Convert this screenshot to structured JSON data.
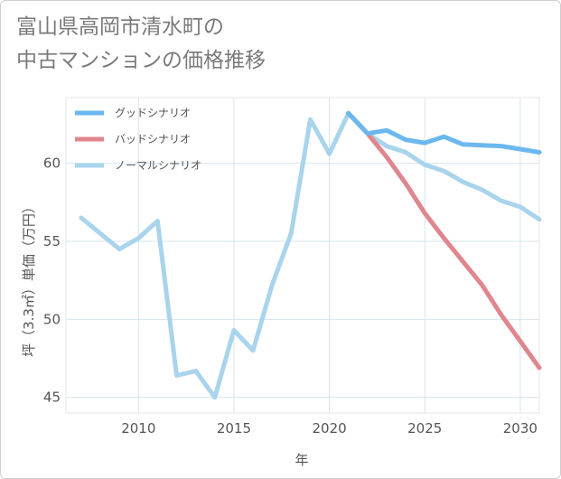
{
  "title": {
    "line1": "富山県高岡市清水町の",
    "line2": "中古マンションの価格推移"
  },
  "chart_data": {
    "type": "line",
    "title": "富山県高岡市清水町の中古マンションの価格推移",
    "xlabel": "年",
    "ylabel": "坪（3.3㎡）単価（万円）",
    "xlim": [
      2006.2,
      2031
    ],
    "ylim": [
      44,
      64.2
    ],
    "xticks": [
      2010,
      2015,
      2020,
      2025,
      2030
    ],
    "yticks": [
      45,
      50,
      55,
      60
    ],
    "grid": true,
    "legend_position": "top-left",
    "series": [
      {
        "name": "グッドシナリオ",
        "color": "#6bb8ee",
        "x": [
          2021,
          2022,
          2023,
          2024,
          2025,
          2026,
          2027,
          2028,
          2029,
          2030,
          2031
        ],
        "y": [
          63.2,
          61.9,
          62.1,
          61.5,
          61.3,
          61.7,
          61.2,
          61.15,
          61.1,
          60.9,
          60.7
        ]
      },
      {
        "name": "バッドシナリオ",
        "color": "#e0868e",
        "x": [
          2021,
          2022,
          2023,
          2024,
          2025,
          2026,
          2027,
          2028,
          2029,
          2030,
          2031
        ],
        "y": [
          63.2,
          61.9,
          60.4,
          58.7,
          56.8,
          55.2,
          53.7,
          52.2,
          50.3,
          48.6,
          46.9
        ]
      },
      {
        "name": "ノーマルシナリオ",
        "color": "#a9d4ec",
        "x": [
          2007,
          2008,
          2009,
          2010,
          2011,
          2012,
          2013,
          2014,
          2015,
          2016,
          2017,
          2018,
          2019,
          2020,
          2021,
          2022,
          2023,
          2024,
          2025,
          2026,
          2027,
          2028,
          2029,
          2030,
          2031
        ],
        "y": [
          56.5,
          55.5,
          54.5,
          55.2,
          56.3,
          46.4,
          46.7,
          45.0,
          49.3,
          48.0,
          52.2,
          55.5,
          62.8,
          60.6,
          63.2,
          61.9,
          61.1,
          60.7,
          59.9,
          59.5,
          58.8,
          58.3,
          57.6,
          57.2,
          56.4
        ]
      }
    ]
  }
}
